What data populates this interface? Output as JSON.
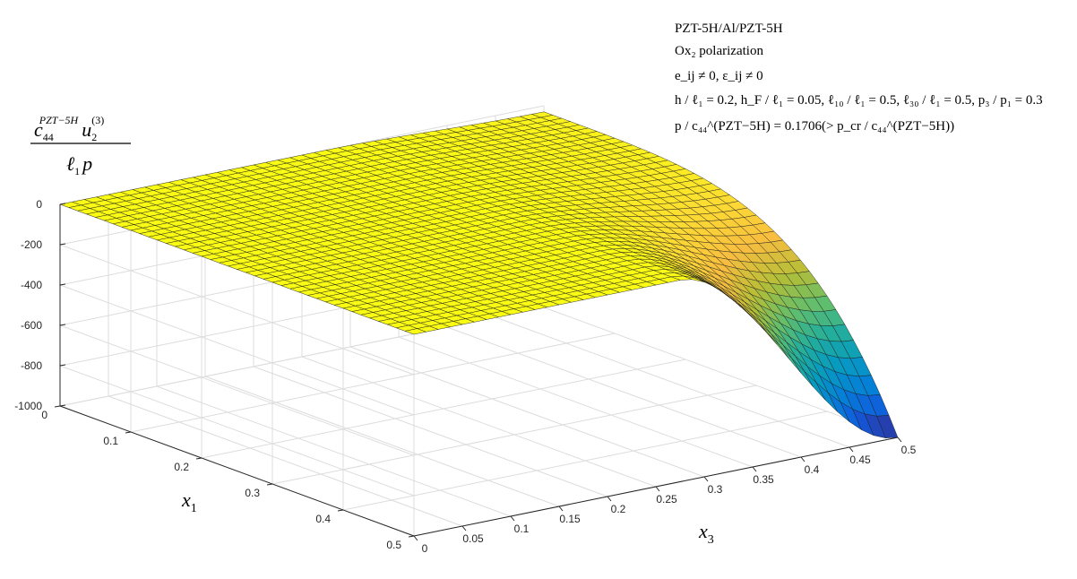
{
  "annotations": {
    "line1": "PZT-5H/Al/PZT-5H",
    "line2": "Ox₂ polarization",
    "line3": "e_ij ≠ 0, ε_ij ≠ 0",
    "line4": "h / ℓ₁ = 0.2, h_F / ℓ₁ = 0.05, ℓ₁₀ / ℓ₁ = 0.5, ℓ₃₀ / ℓ₁ = 0.5, p₃ / p₁ = 0.3",
    "line5": "p / c₄₄^(PZT−5H) = 0.1706(> p_cr / c₄₄^(PZT−5H))"
  },
  "axes": {
    "zlabel": "c₄₄^(PZT−5H) u₂^(3) / ℓ₁ p",
    "xlabel": "x₁",
    "ylabel": "x₃"
  },
  "colors": {
    "colormap": "parula",
    "grid": "#dcdcdc",
    "axis_line": "#262626",
    "edge": "#1a1a1a"
  },
  "chart_data": {
    "type": "surface",
    "x1": {
      "label": "x₁",
      "ticks": [
        0,
        0.1,
        0.2,
        0.3,
        0.4,
        0.5
      ],
      "range": [
        0,
        0.5
      ]
    },
    "x3": {
      "label": "x₃",
      "ticks": [
        0,
        0.05,
        0.1,
        0.15,
        0.2,
        0.25,
        0.3,
        0.35,
        0.4,
        0.45,
        0.5
      ],
      "range": [
        0,
        0.5
      ]
    },
    "z": {
      "ticks": [
        0,
        -200,
        -400,
        -600,
        -800,
        -1000
      ],
      "range": [
        -1000,
        0
      ]
    },
    "grid": "on",
    "mesh": 40,
    "profile": {
      "description": "u2 ≈ 0 for x3 < ~0.3, dropping to about -1000 at x3 = 0.5 near x1 = 0.5",
      "x3": [
        0,
        0.25,
        0.3,
        0.35,
        0.4,
        0.45,
        0.5
      ],
      "u2_at_x1_0.5": [
        0,
        0,
        -20,
        -180,
        -480,
        -800,
        -1000
      ],
      "u2_at_x1_0": [
        0,
        0,
        0,
        0,
        -5,
        -15,
        -30
      ]
    }
  }
}
